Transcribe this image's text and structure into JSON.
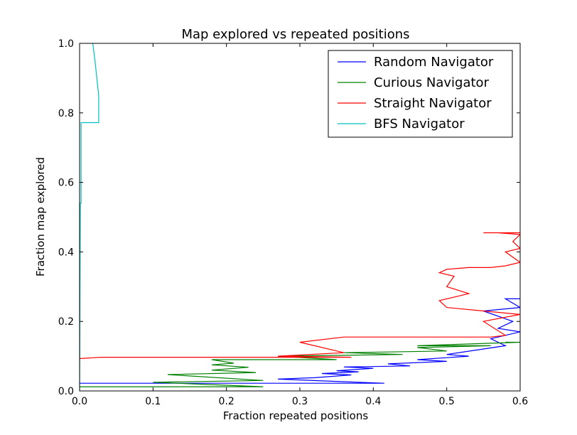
{
  "chart_data": {
    "type": "line",
    "title": "Map explored vs repeated positions",
    "xlabel": "Fraction repeated positions",
    "ylabel": "Fraction map explored",
    "xlim": [
      0.0,
      0.6
    ],
    "ylim": [
      0.0,
      1.0
    ],
    "xticks": [
      0.0,
      0.1,
      0.2,
      0.3,
      0.4,
      0.5,
      0.6
    ],
    "xtick_labels": [
      "0.0",
      "0.1",
      "0.2",
      "0.3",
      "0.4",
      "0.5",
      "0.6"
    ],
    "yticks": [
      0.0,
      0.2,
      0.4,
      0.6,
      0.8,
      1.0
    ],
    "ytick_labels": [
      "0.0",
      "0.2",
      "0.4",
      "0.6",
      "0.8",
      "1.0"
    ],
    "grid": false,
    "legend_position": "top-right",
    "series": [
      {
        "name": "Random Navigator",
        "color": "#0000ff",
        "x": [
          0.0,
          0.415,
          0.27,
          0.32,
          0.37,
          0.33,
          0.38,
          0.35,
          0.4,
          0.36,
          0.45,
          0.42,
          0.5,
          0.46,
          0.53,
          0.5,
          0.58,
          0.56,
          0.6,
          0.57,
          0.59,
          0.55,
          0.6,
          0.58,
          0.6
        ],
        "y": [
          0.022,
          0.022,
          0.034,
          0.038,
          0.046,
          0.05,
          0.055,
          0.058,
          0.065,
          0.069,
          0.072,
          0.078,
          0.085,
          0.09,
          0.1,
          0.105,
          0.13,
          0.15,
          0.17,
          0.18,
          0.2,
          0.23,
          0.24,
          0.265,
          0.265
        ]
      },
      {
        "name": "Curious Navigator",
        "color": "#008000",
        "x": [
          0.0,
          0.25,
          0.1,
          0.25,
          0.12,
          0.24,
          0.18,
          0.23,
          0.18,
          0.21,
          0.18,
          0.35,
          0.27,
          0.44,
          0.36,
          0.5,
          0.46,
          0.56,
          0.46,
          0.6,
          0.58,
          0.6
        ],
        "y": [
          0.012,
          0.012,
          0.025,
          0.03,
          0.047,
          0.053,
          0.06,
          0.068,
          0.075,
          0.08,
          0.09,
          0.09,
          0.1,
          0.105,
          0.11,
          0.115,
          0.125,
          0.13,
          0.13,
          0.14,
          0.14,
          0.14
        ]
      },
      {
        "name": "Straight Navigator",
        "color": "#ff0000",
        "x": [
          0.0,
          0.03,
          0.37,
          0.27,
          0.36,
          0.3,
          0.36,
          0.56,
          0.58,
          0.55,
          0.6,
          0.55,
          0.5,
          0.49,
          0.53,
          0.5,
          0.51,
          0.49,
          0.5,
          0.53,
          0.56,
          0.58,
          0.6,
          0.58,
          0.6,
          0.59,
          0.6,
          0.57,
          0.55,
          0.6
        ],
        "y": [
          0.093,
          0.097,
          0.097,
          0.1,
          0.11,
          0.14,
          0.155,
          0.155,
          0.16,
          0.2,
          0.22,
          0.23,
          0.24,
          0.26,
          0.28,
          0.3,
          0.33,
          0.34,
          0.35,
          0.355,
          0.355,
          0.36,
          0.37,
          0.4,
          0.41,
          0.43,
          0.45,
          0.455,
          0.455,
          0.455
        ]
      },
      {
        "name": "BFS Navigator",
        "color": "#00bfbf",
        "x": [
          0.0,
          0.001,
          0.002,
          0.002,
          0.026,
          0.026,
          0.021,
          0.018
        ],
        "y": [
          0.0,
          0.54,
          0.54,
          0.772,
          0.772,
          0.85,
          0.95,
          1.0
        ]
      }
    ]
  }
}
